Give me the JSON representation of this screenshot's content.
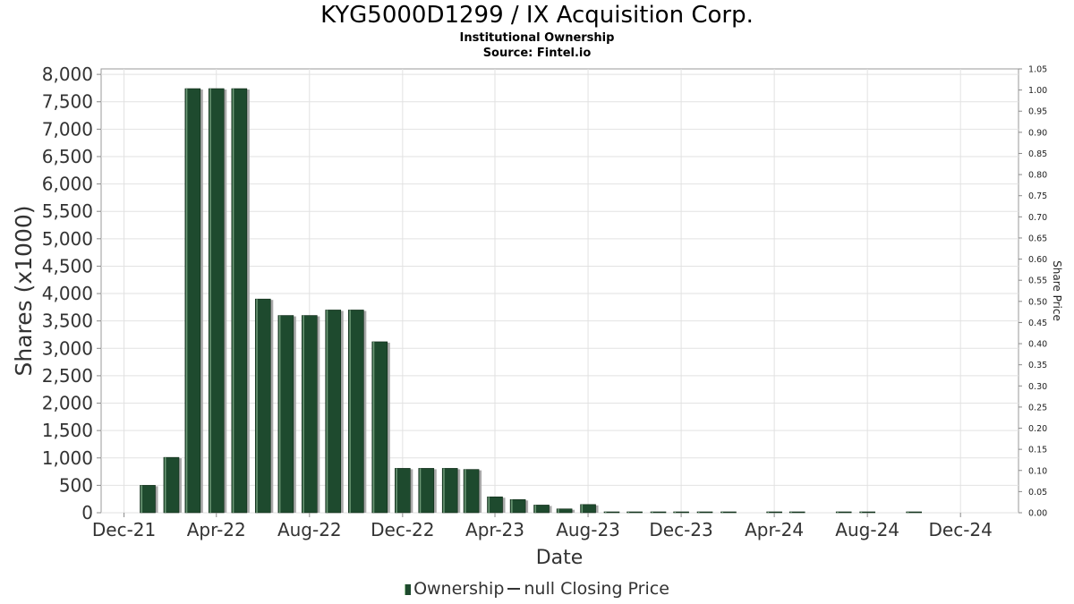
{
  "chart_data": {
    "type": "bar",
    "title": "KYG5000D1299 / IX Acquisition Corp.",
    "subtitle_lines": [
      "Institutional Ownership",
      "Source: Fintel.io"
    ],
    "xlabel": "Date",
    "ylabel": "Shares (x1000)",
    "ylabel_right": "Share Price",
    "x_tick_labels": [
      "Dec-21",
      "Apr-22",
      "Aug-22",
      "Dec-22",
      "Apr-23",
      "Aug-23",
      "Dec-23",
      "Apr-24",
      "Aug-24",
      "Dec-24"
    ],
    "y_tick_labels": [
      "0",
      "500",
      "1,000",
      "1,500",
      "2,000",
      "2,500",
      "3,000",
      "3,500",
      "4,000",
      "4,500",
      "5,000",
      "5,500",
      "6,000",
      "6,500",
      "7,000",
      "7,500",
      "8,000"
    ],
    "y2_tick_labels": [
      "0.00",
      "0.05",
      "0.10",
      "0.15",
      "0.20",
      "0.25",
      "0.30",
      "0.35",
      "0.40",
      "0.45",
      "0.50",
      "0.55",
      "0.60",
      "0.65",
      "0.70",
      "0.75",
      "0.80",
      "0.85",
      "0.90",
      "0.95",
      "1.00",
      "1.05"
    ],
    "ylim": [
      0,
      8100
    ],
    "y2lim": [
      0,
      1.05
    ],
    "xlim": [
      "2021-11-01",
      "2025-02-15"
    ],
    "grid": true,
    "legend_position": "bottom",
    "series": [
      {
        "name": "Ownership",
        "type": "bar",
        "color": "#1e4a2e",
        "points": [
          {
            "date": "2022-01-01",
            "value": 500
          },
          {
            "date": "2022-02-01",
            "value": 1010
          },
          {
            "date": "2022-03-01",
            "value": 7740
          },
          {
            "date": "2022-04-01",
            "value": 7740
          },
          {
            "date": "2022-05-01",
            "value": 7740
          },
          {
            "date": "2022-06-01",
            "value": 3900
          },
          {
            "date": "2022-07-01",
            "value": 3600
          },
          {
            "date": "2022-08-01",
            "value": 3600
          },
          {
            "date": "2022-09-01",
            "value": 3700
          },
          {
            "date": "2022-10-01",
            "value": 3700
          },
          {
            "date": "2022-11-01",
            "value": 3120
          },
          {
            "date": "2022-12-01",
            "value": 810
          },
          {
            "date": "2023-01-01",
            "value": 810
          },
          {
            "date": "2023-02-01",
            "value": 810
          },
          {
            "date": "2023-03-01",
            "value": 790
          },
          {
            "date": "2023-04-01",
            "value": 290
          },
          {
            "date": "2023-05-01",
            "value": 240
          },
          {
            "date": "2023-06-01",
            "value": 140
          },
          {
            "date": "2023-07-01",
            "value": 70
          },
          {
            "date": "2023-08-01",
            "value": 150
          },
          {
            "date": "2023-09-01",
            "value": 10
          },
          {
            "date": "2023-10-01",
            "value": 10
          },
          {
            "date": "2023-11-01",
            "value": 10
          },
          {
            "date": "2023-12-01",
            "value": 10
          },
          {
            "date": "2024-01-01",
            "value": 10
          },
          {
            "date": "2024-02-01",
            "value": 10
          },
          {
            "date": "2024-04-01",
            "value": 10
          },
          {
            "date": "2024-05-01",
            "value": 10
          },
          {
            "date": "2024-07-01",
            "value": 4
          },
          {
            "date": "2024-08-01",
            "value": 4
          },
          {
            "date": "2024-10-01",
            "value": 4
          }
        ]
      }
    ]
  },
  "legend": {
    "ownership_label": "Ownership",
    "price_label": "null Closing Price"
  }
}
